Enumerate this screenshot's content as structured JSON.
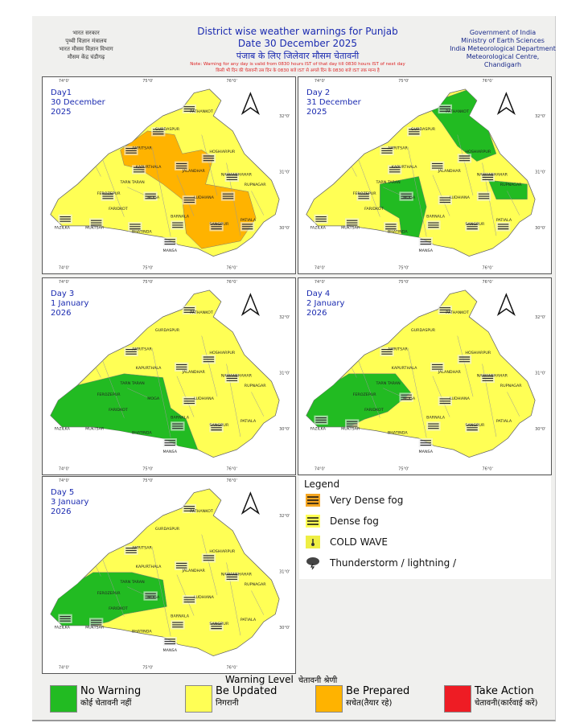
{
  "header": {
    "left_hindi": [
      "भारत सरकार",
      "पृथ्वी विज्ञान मंत्रालय",
      "भारत मौसम विज्ञान विभाग",
      "मौसम केंद्र चंडीगढ़"
    ],
    "title": "District wise weather warnings for Punjab",
    "date": "Date 30 December 2025",
    "title_hindi": "पंजाब के लिए जिलेवार मौसम चेतावनी",
    "note": "Note: Warning for any day is valid from 0830 hours IST of that day till 0830 hours IST of next day",
    "note_hindi": "किसी भी दिन की चेतावनी उस दिन के 0830 बजे IST से अगले दिन के 0830 बजे IST तक मान्य है",
    "right": [
      "Government of India",
      "Ministry of Earth Sciences",
      "India Meteorological Department",
      "Meteorological Centre,",
      "Chandigarh"
    ]
  },
  "colors": {
    "no_warning": "#22bb22",
    "be_updated": "#ffff55",
    "be_prepared": "#ffb300",
    "take_action": "#ee1c24"
  },
  "panels": [
    {
      "label": [
        "Day1",
        "30 December",
        "2025"
      ],
      "green": false,
      "orange": true,
      "regions": "day1"
    },
    {
      "label": [
        "Day 2",
        "31 December",
        "2025"
      ],
      "regions": "day2"
    },
    {
      "label": [
        "Day 3",
        "1 January",
        "2026"
      ],
      "regions": "day3"
    },
    {
      "label": [
        "Day 4",
        "2 January",
        "2026"
      ],
      "regions": "day4"
    },
    {
      "label": [
        "Day 5",
        "3 January",
        "2026"
      ],
      "regions": "day5"
    }
  ],
  "districts": [
    "PATHANKOT",
    "GURDASPUR",
    "AMRITSAR",
    "HOSHIARPUR",
    "KAPURTHALA",
    "JALANDHAR",
    "NAWANSHAHAR",
    "TARN TARAN",
    "RUPNAGAR",
    "FEROZEPUR",
    "MOGA",
    "LUDHIANA",
    "FARIDKOT",
    "FAZILKA",
    "MUKTSAR",
    "BHATINDA",
    "BARNALA",
    "SANGRUR",
    "PATIALA",
    "MANSA"
  ],
  "ticks": {
    "lon": [
      "74°0'",
      "75°0'",
      "76°0'"
    ],
    "lat": [
      "32°0'",
      "31°0'",
      "30°0'"
    ]
  },
  "legend": {
    "title": "Legend",
    "items": [
      {
        "label": "Very Dense fog",
        "icon": "very-dense-fog-icon"
      },
      {
        "label": "Dense fog",
        "icon": "dense-fog-icon"
      },
      {
        "label": "COLD WAVE",
        "icon": "cold-wave-icon"
      },
      {
        "label": "Thunderstorm / lightning /",
        "icon": "thunderstorm-icon"
      }
    ]
  },
  "warning_level": {
    "title": "Warning Level",
    "title_hindi": "चेतावनी श्रेणी",
    "items": [
      {
        "en": "No Warning",
        "hi": "कोई चेतावनी नहीं",
        "color": "#22bb22"
      },
      {
        "en": "Be Updated",
        "hi": "निगरानी",
        "color": "#ffff55"
      },
      {
        "en": "Be Prepared",
        "hi": "सचेत(तैयार रहे)",
        "color": "#ffb300"
      },
      {
        "en": "Take Action",
        "hi": "चेतावनी(कार्रवाई करें)",
        "color": "#ee1c24"
      }
    ]
  }
}
